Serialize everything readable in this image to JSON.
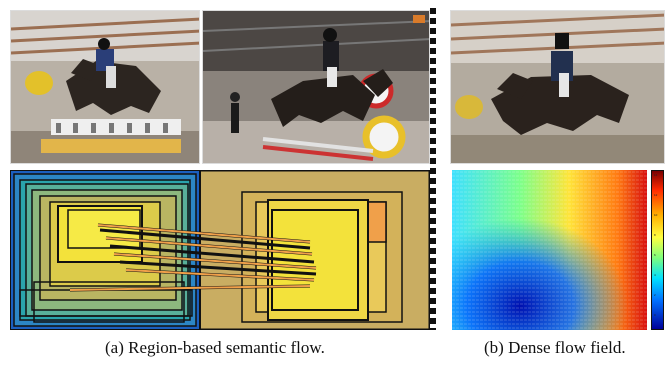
{
  "captions": {
    "left": "(a) Region-based semantic flow.",
    "right": "(b) Dense flow field."
  },
  "colorbar": {
    "ticks": [
      "14",
      "12",
      "10",
      "8",
      "6",
      "4",
      "2",
      "0"
    ]
  },
  "colors": {
    "region_yellow": "#f3e23b",
    "region_tan": "#c9ad62",
    "region_teal": "#2aa4ac",
    "region_blue": "#1b5fc0",
    "flow_orange": "#f0a04a",
    "separator": "#111111"
  },
  "icons": {
    "photo_left": "horse-jump-photo",
    "photo_middle": "horse-jump-photo",
    "photo_right": "horse-jump-photo"
  }
}
